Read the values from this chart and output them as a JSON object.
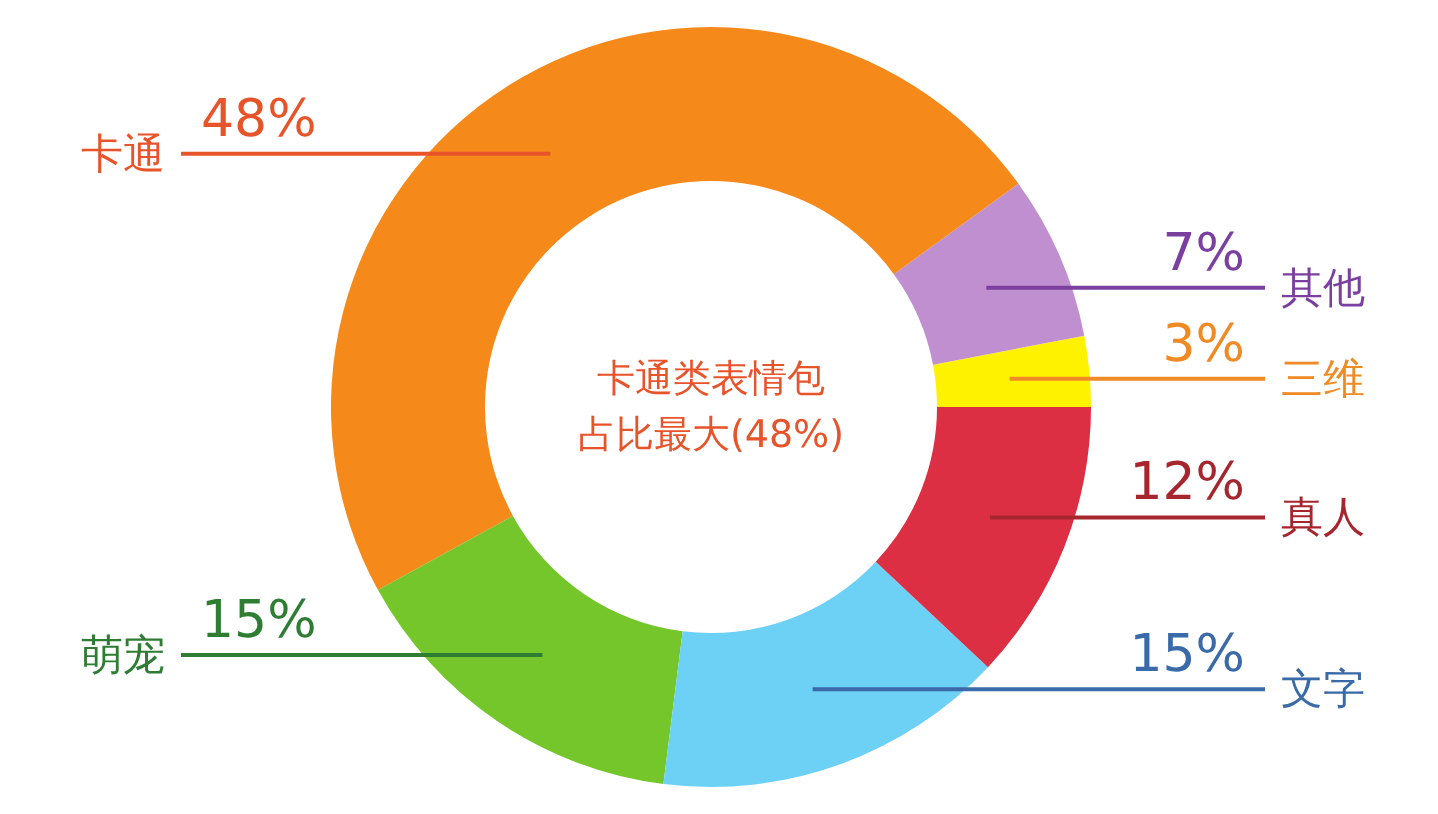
{
  "chart_data": {
    "type": "donut",
    "categories": [
      "三维",
      "其他",
      "卡通",
      "萌宠",
      "文字",
      "真人"
    ],
    "values": [
      3,
      7,
      48,
      15,
      15,
      12
    ],
    "value_labels": [
      "3%",
      "7%",
      "48%",
      "15%",
      "15%",
      "12%"
    ],
    "colors": [
      "#fff200",
      "#c08fd0",
      "#f5891a",
      "#74c62a",
      "#6dd0f5",
      "#dc2f43"
    ],
    "annotations": [
      "卡通类表情包",
      "占比最大(48%)"
    ]
  }
}
